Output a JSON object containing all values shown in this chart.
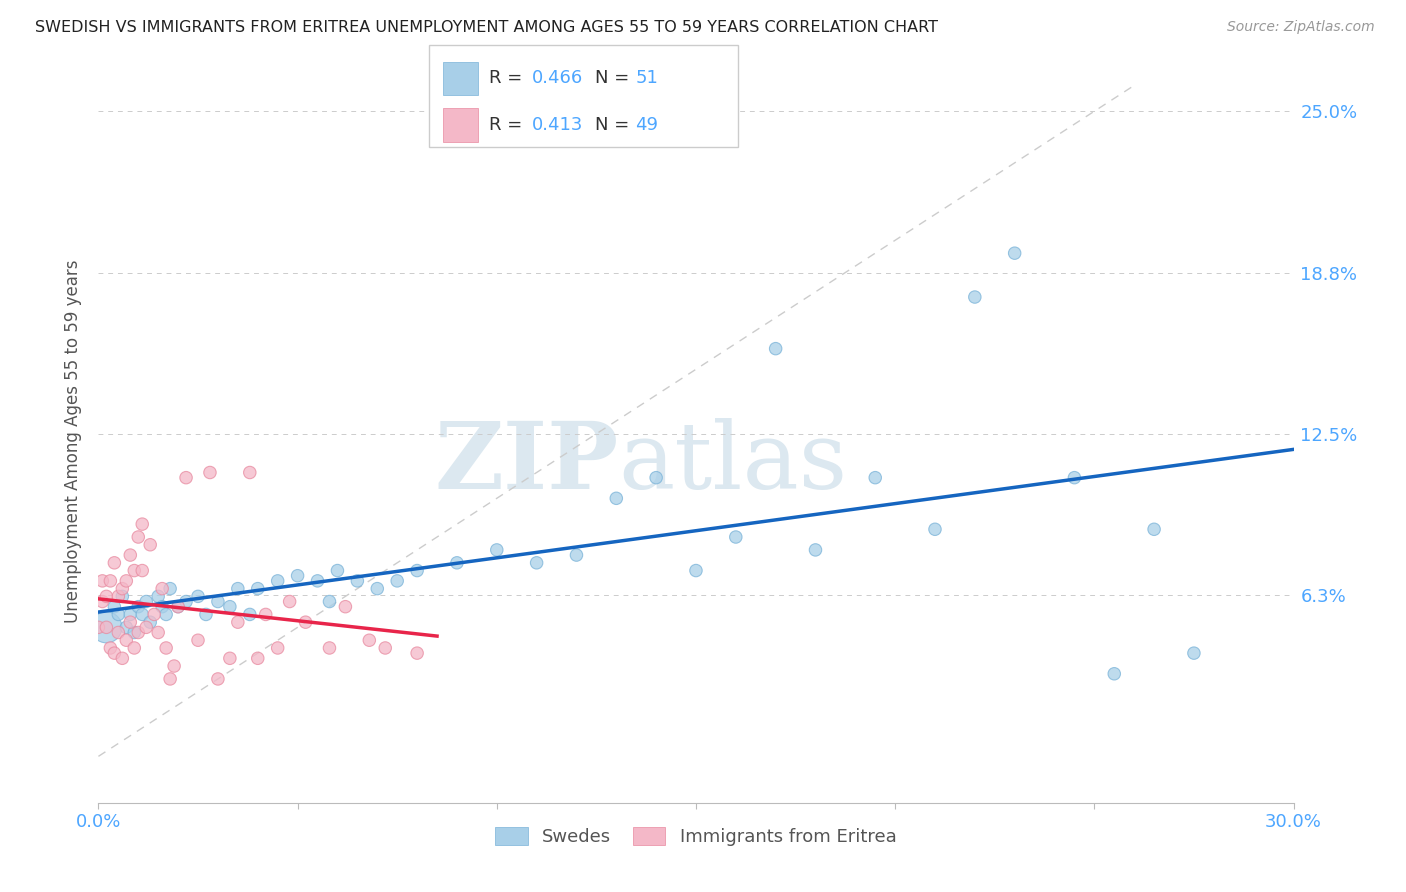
{
  "title": "SWEDISH VS IMMIGRANTS FROM ERITREA UNEMPLOYMENT AMONG AGES 55 TO 59 YEARS CORRELATION CHART",
  "source": "Source: ZipAtlas.com",
  "ylabel": "Unemployment Among Ages 55 to 59 years",
  "xlim": [
    0.0,
    0.3
  ],
  "ylim": [
    -0.018,
    0.262
  ],
  "watermark_zip": "ZIP",
  "watermark_atlas": "atlas",
  "blue_color": "#a8cfe8",
  "blue_edge_color": "#7ab3d8",
  "pink_color": "#f4b8c8",
  "pink_edge_color": "#e88aa0",
  "blue_line_color": "#1565c0",
  "pink_line_color": "#e8254a",
  "diag_line_color": "#cccccc",
  "grid_color": "#cccccc",
  "swedes_x": [
    0.002,
    0.004,
    0.005,
    0.006,
    0.007,
    0.008,
    0.009,
    0.01,
    0.011,
    0.012,
    0.013,
    0.015,
    0.016,
    0.017,
    0.018,
    0.02,
    0.022,
    0.025,
    0.027,
    0.03,
    0.033,
    0.035,
    0.038,
    0.04,
    0.045,
    0.05,
    0.055,
    0.058,
    0.06,
    0.065,
    0.07,
    0.075,
    0.08,
    0.09,
    0.1,
    0.11,
    0.12,
    0.13,
    0.14,
    0.15,
    0.16,
    0.17,
    0.18,
    0.195,
    0.21,
    0.22,
    0.23,
    0.245,
    0.255,
    0.265,
    0.275
  ],
  "swedes_y": [
    0.05,
    0.058,
    0.055,
    0.062,
    0.05,
    0.055,
    0.048,
    0.058,
    0.055,
    0.06,
    0.052,
    0.062,
    0.058,
    0.055,
    0.065,
    0.058,
    0.06,
    0.062,
    0.055,
    0.06,
    0.058,
    0.065,
    0.055,
    0.065,
    0.068,
    0.07,
    0.068,
    0.06,
    0.072,
    0.068,
    0.065,
    0.068,
    0.072,
    0.075,
    0.08,
    0.075,
    0.078,
    0.1,
    0.108,
    0.072,
    0.085,
    0.158,
    0.08,
    0.108,
    0.088,
    0.178,
    0.195,
    0.108,
    0.032,
    0.088,
    0.04
  ],
  "swedes_sizes": [
    500,
    80,
    80,
    80,
    80,
    80,
    80,
    80,
    80,
    80,
    80,
    80,
    80,
    80,
    80,
    80,
    80,
    80,
    80,
    80,
    80,
    80,
    80,
    80,
    80,
    80,
    80,
    80,
    80,
    80,
    80,
    80,
    80,
    80,
    80,
    80,
    80,
    80,
    80,
    80,
    80,
    80,
    80,
    80,
    80,
    80,
    80,
    80,
    80,
    80,
    80
  ],
  "eritrea_x": [
    0.0,
    0.001,
    0.001,
    0.002,
    0.002,
    0.003,
    0.003,
    0.004,
    0.004,
    0.005,
    0.005,
    0.006,
    0.006,
    0.007,
    0.007,
    0.008,
    0.008,
    0.009,
    0.009,
    0.01,
    0.01,
    0.011,
    0.011,
    0.012,
    0.013,
    0.014,
    0.015,
    0.016,
    0.017,
    0.018,
    0.019,
    0.02,
    0.022,
    0.025,
    0.028,
    0.03,
    0.033,
    0.035,
    0.038,
    0.04,
    0.042,
    0.045,
    0.048,
    0.052,
    0.058,
    0.062,
    0.068,
    0.072,
    0.08
  ],
  "eritrea_y": [
    0.05,
    0.06,
    0.068,
    0.05,
    0.062,
    0.042,
    0.068,
    0.04,
    0.075,
    0.048,
    0.062,
    0.038,
    0.065,
    0.045,
    0.068,
    0.052,
    0.078,
    0.042,
    0.072,
    0.048,
    0.085,
    0.072,
    0.09,
    0.05,
    0.082,
    0.055,
    0.048,
    0.065,
    0.042,
    0.03,
    0.035,
    0.058,
    0.108,
    0.045,
    0.11,
    0.03,
    0.038,
    0.052,
    0.11,
    0.038,
    0.055,
    0.042,
    0.06,
    0.052,
    0.042,
    0.058,
    0.045,
    0.042,
    0.04
  ],
  "eritrea_sizes": [
    80,
    80,
    80,
    80,
    80,
    80,
    80,
    80,
    80,
    80,
    80,
    80,
    80,
    80,
    80,
    80,
    80,
    80,
    80,
    80,
    80,
    80,
    80,
    80,
    80,
    80,
    80,
    80,
    80,
    80,
    80,
    80,
    80,
    80,
    80,
    80,
    80,
    80,
    80,
    80,
    80,
    80,
    80,
    80,
    80,
    80,
    80,
    80,
    80
  ]
}
